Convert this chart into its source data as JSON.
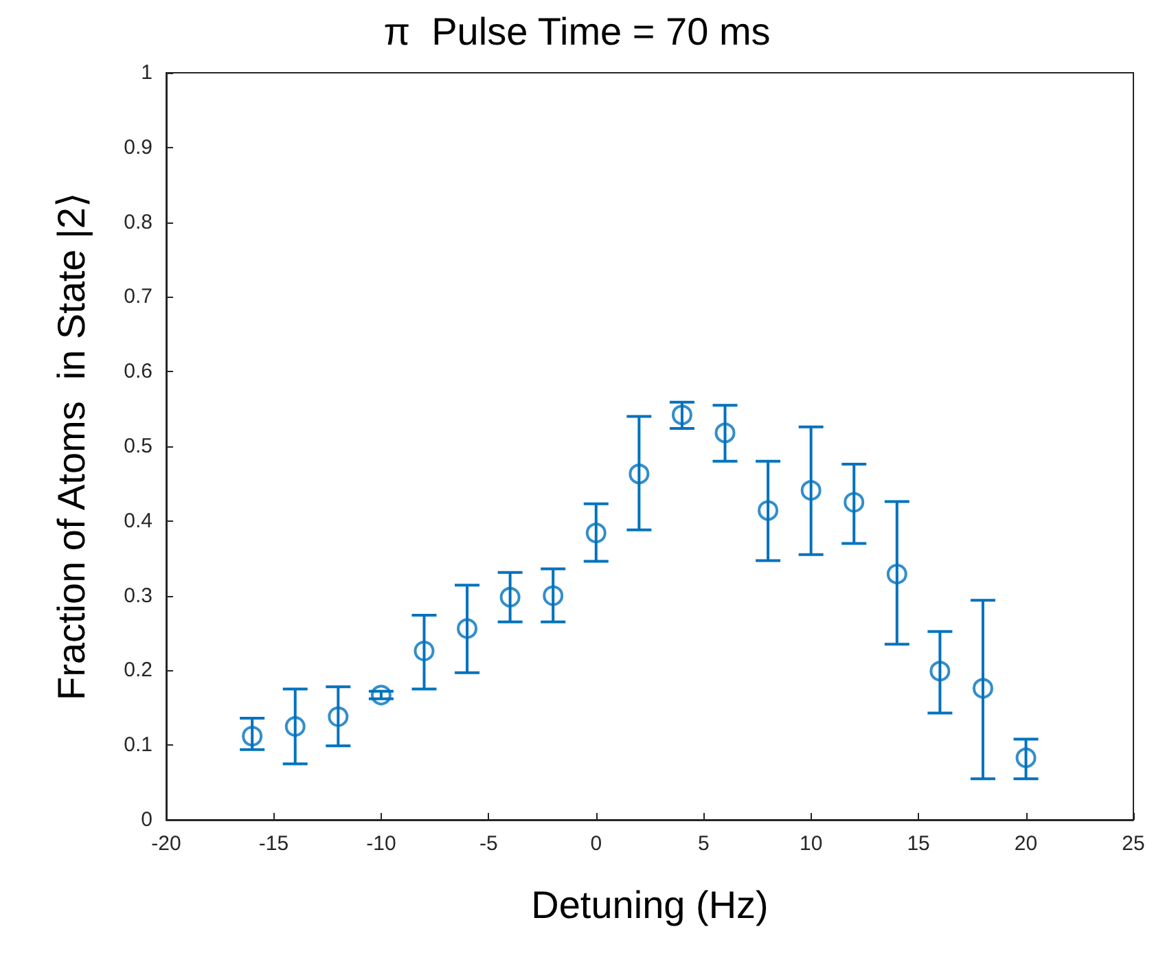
{
  "chart_data": {
    "type": "scatter",
    "title": "π  Pulse Time = 70 ms",
    "xlabel": "Detuning (Hz)",
    "ylabel": "Fraction of Atoms  in State |2⟩",
    "x": [
      -16,
      -14,
      -12,
      -10,
      -8,
      -6,
      -4,
      -2,
      0,
      2,
      4,
      6,
      8,
      10,
      12,
      14,
      16,
      18,
      20
    ],
    "series": [
      {
        "color": "#0072bd",
        "values": [
          0.112,
          0.125,
          0.138,
          0.167,
          0.226,
          0.256,
          0.298,
          0.3,
          0.384,
          0.463,
          0.542,
          0.518,
          0.414,
          0.441,
          0.425,
          0.329,
          0.199,
          0.176,
          0.083
        ],
        "errors": [
          [
            0.094,
            0.136
          ],
          [
            0.075,
            0.175
          ],
          [
            0.099,
            0.178
          ],
          [
            0.162,
            0.172
          ],
          [
            0.175,
            0.274
          ],
          [
            0.197,
            0.314
          ],
          [
            0.265,
            0.331
          ],
          [
            0.265,
            0.336
          ],
          [
            0.346,
            0.423
          ],
          [
            0.388,
            0.54
          ],
          [
            0.524,
            0.559
          ],
          [
            0.48,
            0.555
          ],
          [
            0.347,
            0.48
          ],
          [
            0.355,
            0.526
          ],
          [
            0.37,
            0.476
          ],
          [
            0.235,
            0.426
          ],
          [
            0.143,
            0.252
          ],
          [
            0.055,
            0.294
          ],
          [
            0.055,
            0.108
          ]
        ]
      }
    ],
    "xlim": [
      -20,
      25
    ],
    "xticks": [
      -20,
      -15,
      -10,
      -5,
      0,
      5,
      10,
      15,
      20,
      25
    ],
    "ylim": [
      0,
      1
    ],
    "yticks": [
      0,
      0.1,
      0.2,
      0.3,
      0.4,
      0.5,
      0.6,
      0.7,
      0.8,
      0.9,
      1
    ],
    "grid": false,
    "marker": "circle"
  }
}
